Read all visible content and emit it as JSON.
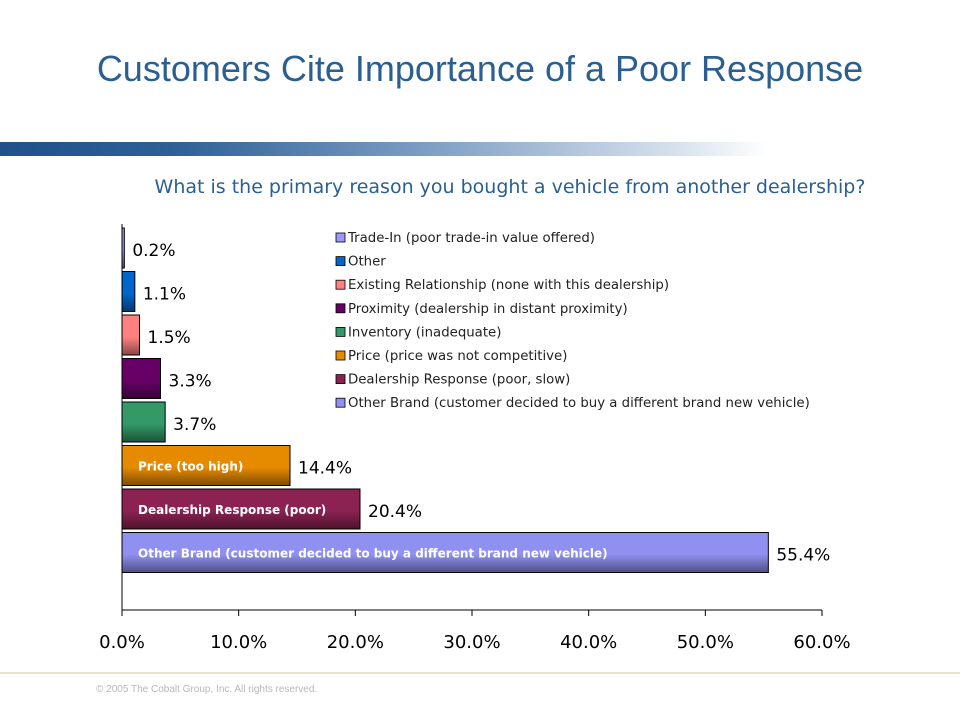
{
  "slide": {
    "title": "Customers Cite Importance of a Poor Response",
    "question": "What is the primary reason you bought a vehicle from another dealership?",
    "footer": "© 2005 The Cobalt Group, Inc. All rights reserved."
  },
  "chart_data": {
    "type": "bar",
    "orientation": "horizontal",
    "xlim": [
      0,
      60
    ],
    "x_ticks": [
      "0.0%",
      "10.0%",
      "20.0%",
      "30.0%",
      "40.0%",
      "50.0%",
      "60.0%"
    ],
    "legend_position": "top-right",
    "grid": false,
    "series": [
      {
        "name": "Trade-In (poor trade-in value offered)",
        "value": 0.2,
        "label": "0.2%",
        "color": "#9999FF",
        "bar_text": ""
      },
      {
        "name": "Other",
        "value": 1.1,
        "label": "1.1%",
        "color": "#0066CC",
        "bar_text": ""
      },
      {
        "name": "Existing Relationship (none with this dealership)",
        "value": 1.5,
        "label": "1.5%",
        "color": "#FF8080",
        "bar_text": ""
      },
      {
        "name": "Proximity (dealership in distant proximity)",
        "value": 3.3,
        "label": "3.3%",
        "color": "#660066",
        "bar_text": ""
      },
      {
        "name": "Inventory (inadequate)",
        "value": 3.7,
        "label": "3.7%",
        "color": "#339966",
        "bar_text": ""
      },
      {
        "name": "Price (price was not competitive)",
        "value": 14.4,
        "label": "14.4%",
        "color": "#E68A00",
        "bar_text": "Price (too high)"
      },
      {
        "name": "Dealership Response (poor, slow)",
        "value": 20.4,
        "label": "20.4%",
        "color": "#8B2252",
        "bar_text": "Dealership Response (poor)"
      },
      {
        "name": "Other Brand (customer decided to buy a different brand new vehicle)",
        "value": 55.4,
        "label": "55.4%",
        "color": "#9090F0",
        "bar_text": "Other Brand (customer decided to buy a different brand new vehicle)"
      }
    ]
  }
}
